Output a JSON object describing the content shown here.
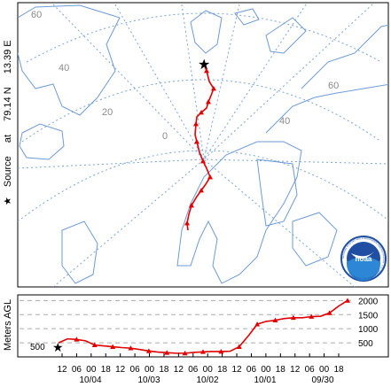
{
  "source": {
    "label": "Source",
    "at_label": "at",
    "lat": "79.14 N",
    "lon": "13.39 E",
    "star_icon": "black-star-icon"
  },
  "map": {
    "graticule_labels": [
      "60",
      "40",
      "20",
      "0",
      "40",
      "60"
    ],
    "track_color": "#e00000",
    "land_outline_color": "#6e9bd6",
    "graticule_color": "#7aa5d6"
  },
  "logo": {
    "text": "noaa",
    "ring_text": "NATIONAL OCEANIC AND ATMOSPHERIC ADMINISTRATION · U.S. DEPARTMENT OF COMMERCE"
  },
  "profile": {
    "ylabel": "Meters AGL",
    "start_height_label": "500",
    "y_ticks": [
      "2000",
      "1500",
      "1000",
      "500"
    ],
    "hour_ticks": [
      "12",
      "06",
      "00",
      "18",
      "12",
      "06",
      "00",
      "18",
      "12",
      "06",
      "00",
      "18",
      "12",
      "06",
      "00",
      "18",
      "12",
      "06",
      "00",
      "18"
    ],
    "date_ticks": [
      "10/04",
      "10/03",
      "10/02",
      "10/01",
      "09/30"
    ]
  },
  "chart_data": {
    "type": "line",
    "title": "",
    "xlabel": "",
    "ylabel": "Meters AGL",
    "ylim": [
      0,
      2200
    ],
    "x_direction": "time runs backward from left (10/04 12) to right (09/30 18)",
    "series": [
      {
        "values": [
          500,
          640,
          620,
          570,
          420,
          390,
          360,
          330,
          310,
          260,
          210,
          170,
          150,
          130,
          130,
          160,
          180,
          190,
          190,
          200,
          360,
          740,
          1160,
          1260,
          1300,
          1360,
          1390,
          1390,
          1430,
          1440,
          1560,
          1800,
          2000
        ]
      }
    ]
  }
}
